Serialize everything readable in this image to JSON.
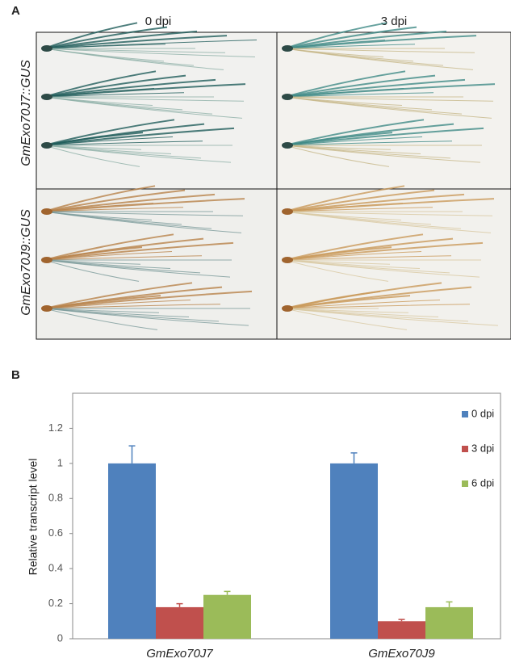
{
  "panel_a": {
    "label": "A",
    "columns": [
      "0 dpi",
      "3 dpi"
    ],
    "rows": [
      "GmExo70J7::GUS",
      "GmExo70J9::GUS"
    ]
  },
  "panel_b": {
    "label": "B"
  },
  "chart_data": {
    "type": "bar",
    "categories": [
      "GmExo70J7",
      "GmExo70J9"
    ],
    "y_label": "Relative transcript level",
    "series": [
      {
        "name": "0 dpi",
        "color": "#4f81bd",
        "values": [
          1.0,
          1.0
        ],
        "errors": [
          0.1,
          0.06
        ]
      },
      {
        "name": "3 dpi",
        "color": "#c0504d",
        "values": [
          0.18,
          0.1
        ],
        "errors": [
          0.02,
          0.01
        ]
      },
      {
        "name": "6 dpi",
        "color": "#9bbb59",
        "values": [
          0.25,
          0.18
        ],
        "errors": [
          0.02,
          0.03
        ]
      }
    ],
    "ylim": [
      0,
      1.4
    ],
    "yticks": [
      0,
      0.2,
      0.4,
      0.6,
      0.8,
      1,
      1.2
    ],
    "grid": false,
    "legend": "upper right"
  }
}
